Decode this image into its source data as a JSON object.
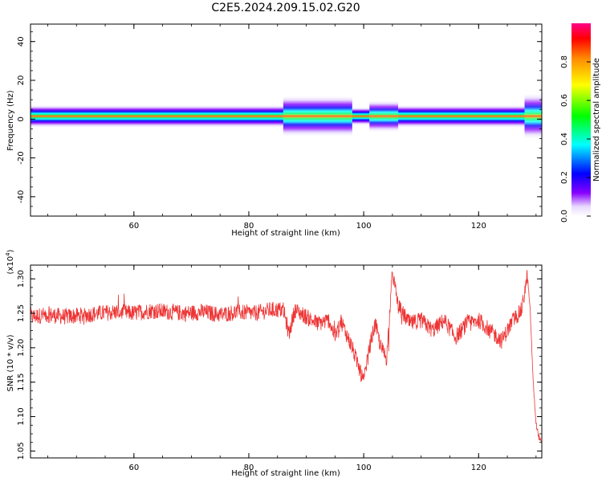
{
  "title": "C2E5.2024.209.15.02.G20",
  "chart_data": [
    {
      "type": "heatmap",
      "xlabel": "Height of straight line (km)",
      "ylabel": "Frequency (Hz)",
      "xlim": [
        42,
        131
      ],
      "ylim": [
        -50,
        49
      ],
      "xticks": [
        60,
        80,
        100,
        120
      ],
      "yticks": [
        -40,
        -20,
        0,
        20,
        40
      ],
      "colorbar": {
        "label": "Normalized spectral amplitude",
        "range": [
          0,
          1
        ],
        "ticks": [
          "0.0",
          "0.2",
          "0.4",
          "0.6",
          "0.8"
        ]
      },
      "ridge": {
        "center_hz": 1.5,
        "band_segments": [
          {
            "x": [
              42,
              86
            ],
            "halfwidth_hz": 2.5,
            "amplitude": 0.85
          },
          {
            "x": [
              86,
              98
            ],
            "halfwidth_hz": 4.5,
            "amplitude": 0.6
          },
          {
            "x": [
              98,
              101
            ],
            "halfwidth_hz": 2.0,
            "amplitude": 0.9
          },
          {
            "x": [
              101,
              106
            ],
            "halfwidth_hz": 3.5,
            "amplitude": 0.55
          },
          {
            "x": [
              106,
              128
            ],
            "halfwidth_hz": 2.5,
            "amplitude": 0.85
          },
          {
            "x": [
              128,
              131
            ],
            "halfwidth_hz": 5.0,
            "amplitude": 0.5
          }
        ]
      }
    },
    {
      "type": "line",
      "xlabel": "Height of straight line (km)",
      "ylabel": "SNR (10 * v/v)",
      "yscale_label_base": "(x10",
      "yscale_label_exp": "4",
      "yscale_label_close": ")",
      "xlim": [
        42,
        131
      ],
      "ylim": [
        1.04,
        1.32
      ],
      "xticks": [
        60,
        80,
        100,
        120
      ],
      "yticks": [
        "1.05",
        "1.10",
        "1.15",
        "1.20",
        "1.25",
        "1.30"
      ],
      "color": "#ee3333",
      "series": [
        {
          "x": [
            42,
            45,
            48,
            51,
            54,
            57,
            60,
            63,
            66,
            69,
            72,
            75,
            78,
            81,
            84,
            86,
            87,
            88,
            90,
            92,
            94,
            95,
            96,
            98,
            99,
            100,
            101,
            102,
            103,
            104,
            105,
            106,
            108,
            110,
            112,
            114,
            116,
            118,
            120,
            122,
            124,
            126,
            127.5,
            128.5,
            129,
            129.5,
            130,
            130.5,
            131
          ],
          "y": [
            1.245,
            1.248,
            1.245,
            1.247,
            1.25,
            1.252,
            1.25,
            1.254,
            1.252,
            1.25,
            1.252,
            1.248,
            1.252,
            1.25,
            1.255,
            1.255,
            1.22,
            1.255,
            1.245,
            1.235,
            1.24,
            1.215,
            1.24,
            1.2,
            1.175,
            1.15,
            1.2,
            1.235,
            1.2,
            1.185,
            1.31,
            1.26,
            1.235,
            1.24,
            1.225,
            1.24,
            1.215,
            1.235,
            1.24,
            1.225,
            1.21,
            1.24,
            1.255,
            1.305,
            1.25,
            1.15,
            1.09,
            1.07,
            1.06
          ]
        }
      ]
    }
  ]
}
